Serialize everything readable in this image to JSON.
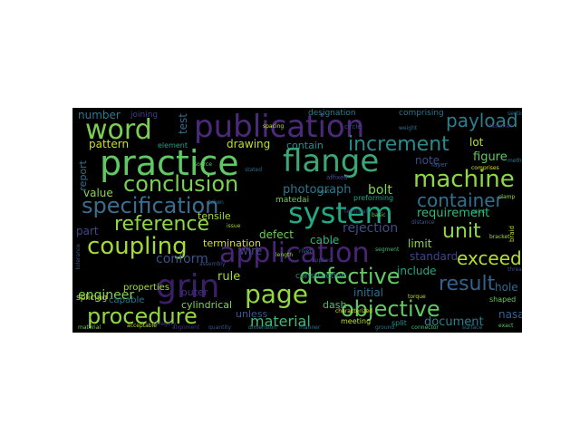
{
  "wordcloud": {
    "background": "#000000",
    "words": [
      {
        "text": "publication",
        "color": "#4b2a7a"
      },
      {
        "text": "word",
        "color": "#7ad151"
      },
      {
        "text": "practice",
        "color": "#5fc963"
      },
      {
        "text": "flange",
        "color": "#3ba774"
      },
      {
        "text": "increment",
        "color": "#2a8a8b"
      },
      {
        "text": "payload",
        "color": "#2c7f8d"
      },
      {
        "text": "conclusion",
        "color": "#7ad151"
      },
      {
        "text": "machine",
        "color": "#8fd744"
      },
      {
        "text": "specification",
        "color": "#3a6e8e"
      },
      {
        "text": "system",
        "color": "#24a884"
      },
      {
        "text": "container",
        "color": "#31718e"
      },
      {
        "text": "reference",
        "color": "#8fd744"
      },
      {
        "text": "unit",
        "color": "#8fd744"
      },
      {
        "text": "coupling",
        "color": "#a2da37"
      },
      {
        "text": "application",
        "color": "#482576"
      },
      {
        "text": "exceed",
        "color": "#b5de2b"
      },
      {
        "text": "defective",
        "color": "#63cb5f"
      },
      {
        "text": "grin",
        "color": "#3b1f66"
      },
      {
        "text": "page",
        "color": "#93d741"
      },
      {
        "text": "result",
        "color": "#33628d"
      },
      {
        "text": "procedure",
        "color": "#90d743"
      },
      {
        "text": "objective",
        "color": "#5ec962"
      },
      {
        "text": "material",
        "color": "#3fbc73"
      },
      {
        "text": "engineer",
        "color": "#7fd34e"
      },
      {
        "text": "document",
        "color": "#26828e"
      },
      {
        "text": "number",
        "color": "#2b7a8e"
      },
      {
        "text": "pattern",
        "color": "#c7e020"
      },
      {
        "text": "drawing",
        "color": "#c2df23"
      },
      {
        "text": "contain",
        "color": "#21908d"
      },
      {
        "text": "photograph",
        "color": "#2a788e"
      },
      {
        "text": "bolt",
        "color": "#84d44b"
      },
      {
        "text": "rejection",
        "color": "#3d4e8a"
      },
      {
        "text": "requirement",
        "color": "#35b779"
      },
      {
        "text": "report",
        "color": "#2c738e"
      },
      {
        "text": "value",
        "color": "#8ed645"
      },
      {
        "text": "part",
        "color": "#3f4889"
      },
      {
        "text": "rule",
        "color": "#a8db34"
      },
      {
        "text": "wire",
        "color": "#404688"
      },
      {
        "text": "defect",
        "color": "#6ece58"
      },
      {
        "text": "cable",
        "color": "#31b57b"
      },
      {
        "text": "limit",
        "color": "#8fd744"
      },
      {
        "text": "standard",
        "color": "#414487"
      },
      {
        "text": "include",
        "color": "#22a785"
      },
      {
        "text": "initial",
        "color": "#2d708e"
      },
      {
        "text": "nasa",
        "color": "#34608d"
      },
      {
        "text": "hole",
        "color": "#31688e"
      },
      {
        "text": "figure",
        "color": "#5ec962"
      },
      {
        "text": "lot",
        "color": "#bddf26"
      },
      {
        "text": "note",
        "color": "#3e4c8a"
      },
      {
        "text": "test",
        "color": "#2e6e8e"
      },
      {
        "text": "tensile",
        "color": "#a5db36"
      },
      {
        "text": "termination",
        "color": "#d2e21b"
      },
      {
        "text": "conform",
        "color": "#3b528b"
      },
      {
        "text": "construction",
        "color": "#21918c"
      },
      {
        "text": "cylindrical",
        "color": "#7fd34e"
      },
      {
        "text": "properties",
        "color": "#a0da39"
      },
      {
        "text": "capable",
        "color": "#2c728e"
      },
      {
        "text": "unless",
        "color": "#38598c"
      },
      {
        "text": "outer",
        "color": "#46327e"
      },
      {
        "text": "dash",
        "color": "#4ac16d"
      },
      {
        "text": "splicing",
        "color": "#b8de29"
      },
      {
        "text": "element",
        "color": "#20a386"
      },
      {
        "text": "designation",
        "color": "#277f8e"
      },
      {
        "text": "comprising",
        "color": "#2c738e"
      },
      {
        "text": "joining",
        "color": "#424086"
      },
      {
        "text": "layer",
        "color": "#34618d"
      },
      {
        "text": "circle",
        "color": "#3e4989"
      },
      {
        "text": "preforming",
        "color": "#20a386"
      },
      {
        "text": "comprises",
        "color": "#d5e21a"
      },
      {
        "text": "matedai",
        "color": "#6ece58"
      },
      {
        "text": "shaped",
        "color": "#65cb5e"
      },
      {
        "text": "meeting",
        "color": "#c0df25"
      },
      {
        "text": "split",
        "color": "#218f8d"
      },
      {
        "text": "affixed",
        "color": "#3e4a89"
      },
      {
        "text": "characterized",
        "color": "#d8e219"
      },
      {
        "text": "tolerance",
        "color": "#3a538b"
      },
      {
        "text": "taken",
        "color": "#2d718e"
      },
      {
        "text": "basic",
        "color": "#6ccd5a"
      },
      {
        "text": "braid",
        "color": "#b5de2b"
      },
      {
        "text": "point",
        "color": "#22a884"
      },
      {
        "text": "applied",
        "color": "#3f4788"
      },
      {
        "text": "bracket",
        "color": "#a0da39"
      },
      {
        "text": "category",
        "color": "#44397f"
      },
      {
        "text": "rivet",
        "color": "#2e6f8e"
      },
      {
        "text": "segment",
        "color": "#3dbc74"
      },
      {
        "text": "clamp",
        "color": "#8bd646"
      },
      {
        "text": "stated",
        "color": "#31678e"
      },
      {
        "text": "exact",
        "color": "#5ac864"
      },
      {
        "text": "distance",
        "color": "#3a548c"
      },
      {
        "text": "manner",
        "color": "#2a768e"
      },
      {
        "text": "acceptable",
        "color": "#b2dd2d"
      },
      {
        "text": "alignment",
        "color": "#443983"
      },
      {
        "text": "dimension",
        "color": "#24868e"
      },
      {
        "text": "quantity",
        "color": "#38588c"
      },
      {
        "text": "surface",
        "color": "#2f6c8e"
      },
      {
        "text": "material",
        "color": "#75d054"
      },
      {
        "text": "fastener",
        "color": "#46307e"
      },
      {
        "text": "connector",
        "color": "#48c16e"
      },
      {
        "text": "ground",
        "color": "#2b758e"
      },
      {
        "text": "spacing",
        "color": "#c8e020"
      },
      {
        "text": "terminal",
        "color": "#404588"
      },
      {
        "text": "length",
        "color": "#98d83e"
      },
      {
        "text": "method",
        "color": "#2a788e"
      },
      {
        "text": "source",
        "color": "#62cb5f"
      },
      {
        "text": "heat",
        "color": "#23898e"
      },
      {
        "text": "thread",
        "color": "#3c4f8a"
      },
      {
        "text": "torque",
        "color": "#bddf26"
      },
      {
        "text": "weight",
        "color": "#306a8e"
      },
      {
        "text": "issue",
        "color": "#9bd93c"
      },
      {
        "text": "section",
        "color": "#2f6b8e"
      },
      {
        "text": "assembly",
        "color": "#3b518b"
      }
    ]
  }
}
